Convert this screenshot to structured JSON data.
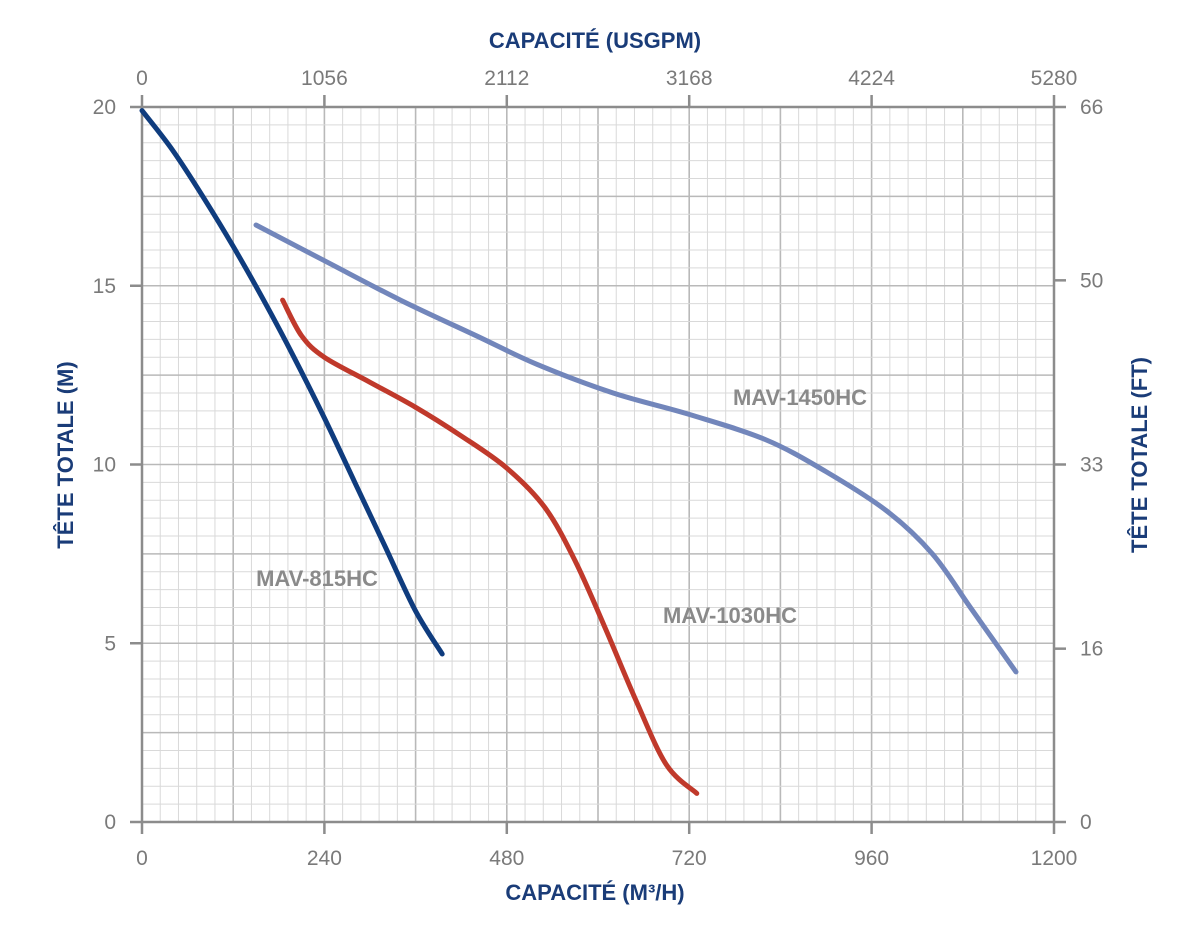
{
  "chart_data": {
    "type": "line",
    "x_bottom": {
      "label": "CAPACITÉ (M³/H)",
      "range": [
        0,
        1200
      ],
      "ticks": [
        0,
        240,
        480,
        720,
        960,
        1200
      ]
    },
    "x_top": {
      "label": "CAPACITÉ (USGPM)",
      "range": [
        0,
        5280
      ],
      "ticks": [
        0,
        1056,
        2112,
        3168,
        4224,
        5280
      ]
    },
    "y_left": {
      "label": "TÊTE TOTALE (M)",
      "range": [
        0,
        20
      ],
      "ticks": [
        0,
        5,
        10,
        15,
        20
      ]
    },
    "y_right": {
      "label": "TÊTE TOTALE (FT)",
      "range": [
        0,
        66
      ],
      "ticks": [
        0,
        16,
        33,
        50,
        66
      ]
    },
    "grid": true,
    "series": [
      {
        "name": "MAV-815HC",
        "color": "#0f3c7e",
        "points": [
          [
            0,
            19.9
          ],
          [
            40,
            18.8
          ],
          [
            80,
            17.5
          ],
          [
            120,
            16.1
          ],
          [
            160,
            14.6
          ],
          [
            200,
            13.0
          ],
          [
            240,
            11.3
          ],
          [
            280,
            9.5
          ],
          [
            320,
            7.7
          ],
          [
            360,
            5.9
          ],
          [
            395,
            4.7
          ]
        ]
      },
      {
        "name": "MAV-1030HC",
        "color": "#c0392b",
        "points": [
          [
            185,
            14.6
          ],
          [
            210,
            13.6
          ],
          [
            240,
            13.0
          ],
          [
            300,
            12.3
          ],
          [
            360,
            11.6
          ],
          [
            420,
            10.8
          ],
          [
            480,
            9.9
          ],
          [
            530,
            8.8
          ],
          [
            570,
            7.3
          ],
          [
            610,
            5.4
          ],
          [
            650,
            3.4
          ],
          [
            690,
            1.6
          ],
          [
            730,
            0.8
          ]
        ]
      },
      {
        "name": "MAV-1450HC",
        "color": "#7286bb",
        "points": [
          [
            150,
            16.7
          ],
          [
            240,
            15.7
          ],
          [
            340,
            14.6
          ],
          [
            440,
            13.6
          ],
          [
            520,
            12.8
          ],
          [
            620,
            12.0
          ],
          [
            720,
            11.4
          ],
          [
            820,
            10.7
          ],
          [
            900,
            9.8
          ],
          [
            980,
            8.7
          ],
          [
            1040,
            7.5
          ],
          [
            1090,
            6.0
          ],
          [
            1150,
            4.2
          ]
        ]
      }
    ]
  }
}
